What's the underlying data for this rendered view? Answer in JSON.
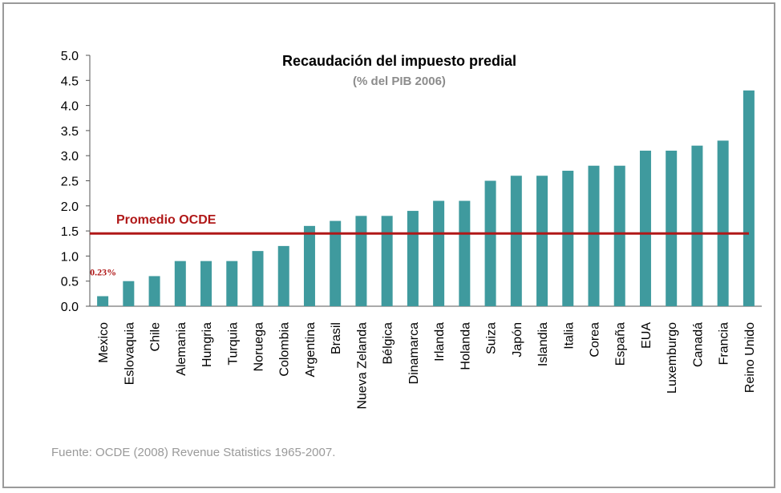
{
  "chart_data": {
    "type": "bar",
    "title": "Recaudación del impuesto predial",
    "subtitle": "(% del PIB 2006)",
    "categories": [
      "Mexico",
      "Eslovaquia",
      "Chile",
      "Alemania",
      "Hungria",
      "Turquia",
      "Noruega",
      "Colombia",
      "Argentina",
      "Brasil",
      "Nueva Zelanda",
      "Bélgica",
      "Dinamarca",
      "Irlanda",
      "Holanda",
      "Suiza",
      "Japón",
      "Islandia",
      "Italia",
      "Corea",
      "España",
      "EUA",
      "Luxemburgo",
      "Canadá",
      "Francia",
      "Reino Unido"
    ],
    "values": [
      0.2,
      0.5,
      0.6,
      0.9,
      0.9,
      0.9,
      1.1,
      1.2,
      1.6,
      1.7,
      1.8,
      1.8,
      1.9,
      2.1,
      2.1,
      2.5,
      2.6,
      2.6,
      2.7,
      2.8,
      2.8,
      3.1,
      3.1,
      3.2,
      3.3,
      4.3
    ],
    "ylim": [
      0,
      5
    ],
    "yticks": [
      "0.0",
      "0.5",
      "1.0",
      "1.5",
      "2.0",
      "2.5",
      "3.0",
      "3.5",
      "4.0",
      "4.5",
      "5.0"
    ],
    "bar_color": "#3f9a9e",
    "reference_line": {
      "label": "Promedio OCDE",
      "value": 1.45,
      "color": "#b01818"
    },
    "annotation": {
      "text": "0.23%",
      "category": "Mexico"
    },
    "source": "Fuente: OCDE (2008) Revenue Statistics 1965-2007."
  }
}
